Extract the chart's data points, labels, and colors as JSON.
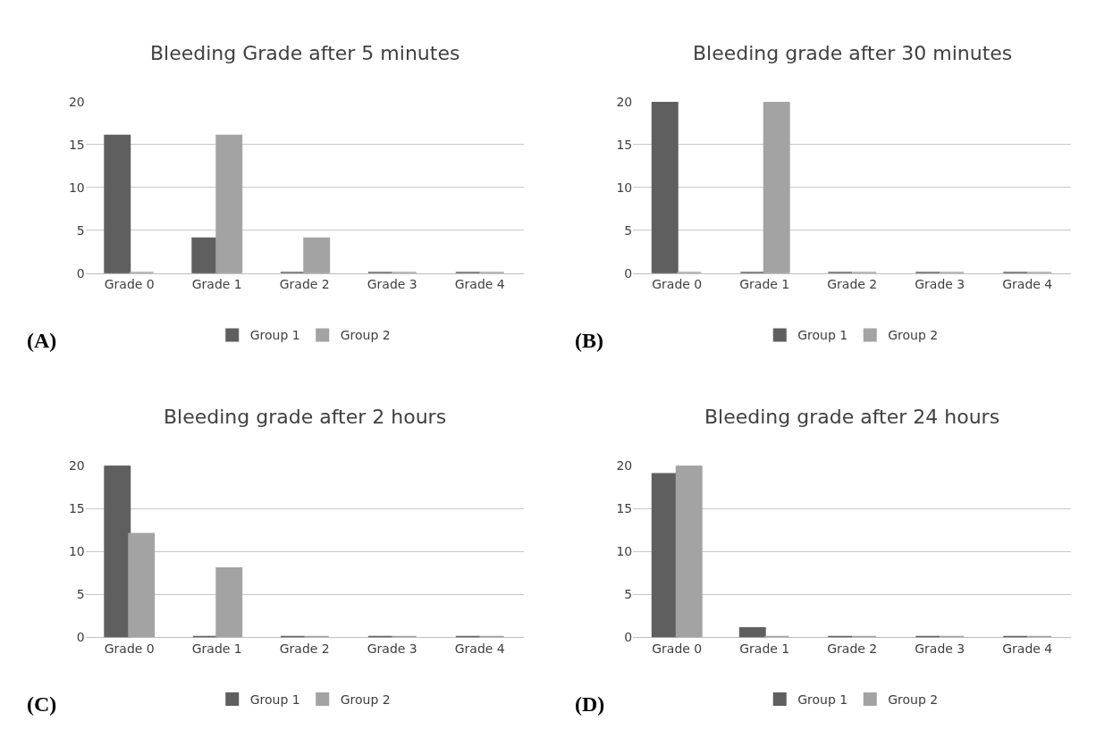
{
  "chart_data": [
    {
      "type": "bar",
      "title": "Bleeding Grade after 5 minutes",
      "categories": [
        "Grade 0",
        "Grade 1",
        "Grade 2",
        "Grade 3",
        "Grade 4"
      ],
      "series": [
        {
          "name": "Group 1",
          "color": "#5f5f5f",
          "values": [
            16,
            4,
            0,
            0,
            0
          ]
        },
        {
          "name": "Group 2",
          "color": "#a3a3a3",
          "values": [
            0,
            16,
            4,
            0,
            0
          ]
        }
      ],
      "ylim": [
        0,
        20
      ],
      "yticks": [
        0,
        5,
        10,
        15,
        20
      ],
      "grid": "y",
      "legend": "bottom",
      "annotations": [
        "(A)"
      ]
    },
    {
      "type": "bar",
      "title": "Bleeding grade after 30 minutes",
      "categories": [
        "Grade 0",
        "Grade 1",
        "Grade 2",
        "Grade 3",
        "Grade 4"
      ],
      "series": [
        {
          "name": "Group 1",
          "color": "#5f5f5f",
          "values": [
            20,
            0,
            0,
            0,
            0
          ]
        },
        {
          "name": "Group 2",
          "color": "#a3a3a3",
          "values": [
            0,
            20,
            0,
            0,
            0
          ]
        }
      ],
      "ylim": [
        0,
        20
      ],
      "yticks": [
        0,
        5,
        10,
        15,
        20
      ],
      "grid": "y",
      "legend": "bottom",
      "annotations": [
        "(B)"
      ]
    },
    {
      "type": "bar",
      "title": "Bleeding grade after 2 hours",
      "categories": [
        "Grade 0",
        "Grade 1",
        "Grade 2",
        "Grade 3",
        "Grade 4"
      ],
      "series": [
        {
          "name": "Group 1",
          "color": "#5f5f5f",
          "values": [
            20,
            0,
            0,
            0,
            0
          ]
        },
        {
          "name": "Group 2",
          "color": "#a3a3a3",
          "values": [
            12,
            8,
            0,
            0,
            0
          ]
        }
      ],
      "ylim": [
        0,
        20
      ],
      "yticks": [
        0,
        5,
        10,
        15,
        20
      ],
      "grid": "y",
      "legend": "bottom",
      "annotations": [
        "(C)"
      ]
    },
    {
      "type": "bar",
      "title": "Bleeding grade after 24 hours",
      "categories": [
        "Grade 0",
        "Grade 1",
        "Grade 2",
        "Grade 3",
        "Grade 4"
      ],
      "series": [
        {
          "name": "Group 1",
          "color": "#5f5f5f",
          "values": [
            19,
            1,
            0,
            0,
            0
          ]
        },
        {
          "name": "Group 2",
          "color": "#a3a3a3",
          "values": [
            20,
            0,
            0,
            0,
            0
          ]
        }
      ],
      "ylim": [
        0,
        20
      ],
      "yticks": [
        0,
        5,
        10,
        15,
        20
      ],
      "grid": "y",
      "legend": "bottom",
      "annotations": [
        "(D)"
      ]
    }
  ]
}
